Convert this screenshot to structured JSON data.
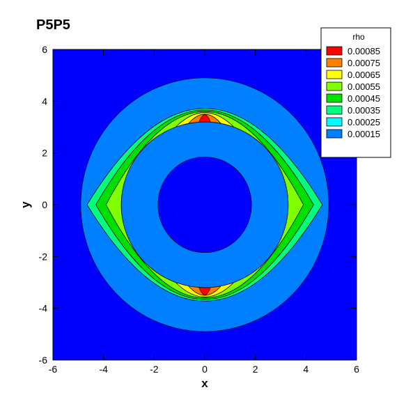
{
  "chart_data": {
    "type": "heatmap",
    "subtype": "filled-contour",
    "title": "P5P5",
    "xlabel": "x",
    "ylabel": "y",
    "xlim": [
      -6,
      6
    ],
    "ylim": [
      -6,
      6
    ],
    "xticks": [
      "-6",
      "-4",
      "-2",
      "0",
      "2",
      "4",
      "6"
    ],
    "yticks": [
      "-6",
      "-4",
      "-2",
      "0",
      "2",
      "4",
      "6"
    ],
    "grid": false,
    "legend": {
      "title": "rho",
      "placement": "top-right",
      "levels": [
        {
          "label": "0.00085",
          "color": "#ff0000"
        },
        {
          "label": "0.00075",
          "color": "#ff8000"
        },
        {
          "label": "0.00065",
          "color": "#ffff00"
        },
        {
          "label": "0.00055",
          "color": "#80ff00"
        },
        {
          "label": "0.00045",
          "color": "#00e000"
        },
        {
          "label": "0.00035",
          "color": "#00ff80"
        },
        {
          "label": "0.00025",
          "color": "#00ffff"
        },
        {
          "label": "0.00015",
          "color": "#0080ff"
        },
        {
          "label": "",
          "color": "#0000ff"
        }
      ]
    },
    "regions": [
      {
        "kind": "background",
        "level": "background",
        "color": "#0000ff"
      },
      {
        "kind": "disk",
        "level": "0.00015",
        "color": "#0080ff",
        "cx": 0,
        "cy": 0,
        "r": 4.9
      },
      {
        "kind": "disk",
        "level": "background",
        "color": "#0000ff",
        "cx": 0,
        "cy": 0,
        "r": 1.85
      },
      {
        "kind": "lens-band",
        "level": "0.00035",
        "color": "#00ff80",
        "rx": 4.65,
        "ry": 3.72
      },
      {
        "kind": "lens-band",
        "level": "0.00045",
        "color": "#00e000",
        "rx": 4.3,
        "ry": 3.66
      },
      {
        "kind": "lens-band",
        "level": "0.00055",
        "color": "#80ff00",
        "rx": 3.9,
        "ry": 3.6
      },
      {
        "kind": "lens-band",
        "level": "0.00065",
        "color": "#ffff00",
        "rx": 2.9,
        "ry": 3.56
      },
      {
        "kind": "lens-band",
        "level": "0.00075",
        "color": "#ff8000",
        "rx": 2.0,
        "ry": 3.5
      },
      {
        "kind": "lens-band",
        "level": "0.00085",
        "color": "#ff0000",
        "rx": 0.8,
        "ry": 3.48
      }
    ]
  }
}
